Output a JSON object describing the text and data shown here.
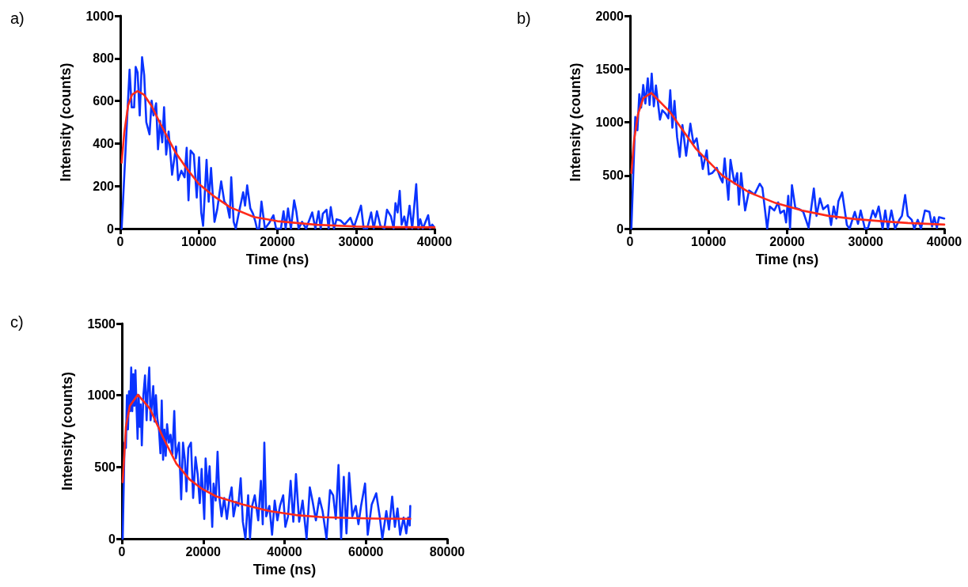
{
  "chart_data": [
    {
      "type": "line",
      "title": "a)",
      "xlabel": "Time (ns)",
      "ylabel": "Intensity (counts)",
      "xlim": [
        0,
        40000
      ],
      "xticks": [
        0,
        10000,
        20000,
        30000,
        40000
      ],
      "ylim": [
        0,
        1000
      ],
      "yticks": [
        0,
        200,
        400,
        600,
        800,
        1000
      ],
      "grid": false,
      "marker": "none",
      "series": [
        {
          "color": "#0a33ff",
          "x": [
            170,
            1180,
            1450,
            1760,
            1960,
            2200,
            2470,
            2770,
            3040,
            3310,
            3720,
            3990,
            4220,
            4560,
            4800,
            5070,
            5340,
            5570,
            5840,
            6150,
            6590,
            7090,
            7360,
            7770,
            8180,
            8450,
            8680,
            8950,
            9360,
            9730,
            10030,
            10300,
            10540,
            10980,
            11250,
            11550,
            11990,
            12330,
            12840,
            13240,
            13610,
            13920,
            14120,
            14430,
            14700,
            15030,
            15640,
            15880,
            16150,
            16550,
            16890,
            17160,
            17400,
            17670,
            17970,
            18410,
            18920,
            19490,
            19830,
            20440,
            20780,
            21050,
            21350,
            21720,
            22130,
            22400,
            22700,
            23140,
            23650,
            24430,
            24830,
            25240,
            25510,
            25780,
            26250,
            26520,
            26790,
            27200,
            27530,
            28040,
            28550,
            29290,
            29730,
            30640,
            30980,
            31420,
            31930,
            32260,
            32670,
            33110,
            33610,
            33950,
            34460,
            34800,
            35030,
            35300,
            35570,
            35810,
            36150,
            36420,
            36820,
            37160,
            37670,
            37940,
            38180,
            38510,
            39190,
            39430,
            39700,
            39970
          ],
          "values": [
            0,
            747,
            570,
            570,
            760,
            734,
            532,
            806,
            722,
            500,
            443,
            601,
            532,
            589,
            373,
            506,
            405,
            570,
            348,
            456,
            253,
            386,
            228,
            272,
            241,
            380,
            133,
            367,
            348,
            146,
            335,
            76,
            13,
            323,
            127,
            285,
            32,
            89,
            222,
            127,
            108,
            51,
            241,
            32,
            0,
            63,
            171,
            108,
            203,
            95,
            70,
            38,
            0,
            0,
            127,
            0,
            25,
            63,
            0,
            0,
            82,
            0,
            95,
            0,
            133,
            82,
            0,
            32,
            0,
            76,
            0,
            82,
            0,
            70,
            89,
            0,
            101,
            0,
            44,
            38,
            19,
            51,
            6,
            108,
            0,
            0,
            76,
            0,
            82,
            13,
            0,
            89,
            57,
            0,
            120,
            76,
            177,
            19,
            57,
            0,
            108,
            0,
            209,
            0,
            44,
            0,
            63,
            0,
            19,
            6
          ]
        },
        {
          "color": "#ff2a1a",
          "x": [
            170,
            500,
            1000,
            1500,
            2200,
            3000,
            4000,
            5000,
            6000,
            7000,
            8500,
            10000,
            12000,
            14000,
            17000,
            20000,
            25000,
            30000,
            35000,
            40000
          ],
          "values": [
            310,
            450,
            580,
            630,
            646,
            630,
            575,
            500,
            430,
            360,
            280,
            210,
            150,
            100,
            55,
            35,
            18,
            10,
            7,
            6
          ]
        }
      ]
    },
    {
      "type": "line",
      "title": "b)",
      "xlabel": "Time (ns)",
      "ylabel": "Intensity (counts)",
      "xlim": [
        0,
        40000
      ],
      "xticks": [
        0,
        10000,
        20000,
        30000,
        40000
      ],
      "ylim": [
        0,
        2000
      ],
      "yticks": [
        0,
        500,
        1000,
        1500,
        2000
      ],
      "grid": false,
      "marker": "none",
      "series": [
        {
          "color": "#0a33ff",
          "x": [
            170,
            670,
            940,
            1180,
            1410,
            1680,
            1950,
            2260,
            2490,
            2760,
            3030,
            3300,
            3810,
            4110,
            4550,
            4880,
            5120,
            5390,
            5660,
            5990,
            6330,
            6670,
            7140,
            7680,
            8080,
            8480,
            8820,
            9020,
            9260,
            9760,
            10030,
            10440,
            11040,
            11450,
            11780,
            12050,
            12520,
            12790,
            13300,
            13640,
            13870,
            14140,
            14650,
            15150,
            15840,
            16510,
            16850,
            17460,
            17790,
            18370,
            18860,
            19130,
            19600,
            19870,
            20140,
            20370,
            20610,
            21040,
            21550,
            22050,
            22730,
            23400,
            23740,
            24180,
            24580,
            25190,
            25590,
            25930,
            26260,
            26530,
            27000,
            27610,
            27950,
            28620,
            29020,
            29360,
            29900,
            30300,
            30910,
            31250,
            31650,
            32150,
            32490,
            32830,
            33270,
            33740,
            34280,
            34610,
            35020,
            35350,
            35860,
            36190,
            36630,
            37040,
            37540,
            38110,
            38450,
            38720,
            39060,
            39330,
            40000
          ],
          "values": [
            0,
            1049,
            924,
            1263,
            1137,
            1350,
            1175,
            1413,
            1162,
            1456,
            1150,
            1345,
            1024,
            1112,
            1079,
            1037,
            1300,
            949,
            1200,
            861,
            673,
            974,
            685,
            986,
            798,
            848,
            685,
            698,
            560,
            735,
            510,
            522,
            572,
            484,
            434,
            660,
            271,
            647,
            422,
            522,
            226,
            522,
            171,
            359,
            321,
            422,
            384,
            0,
            208,
            171,
            246,
            146,
            171,
            58,
            309,
            0,
            409,
            196,
            183,
            158,
            8,
            377,
            120,
            284,
            183,
            221,
            33,
            208,
            95,
            259,
            341,
            33,
            0,
            158,
            45,
            171,
            0,
            8,
            171,
            108,
            208,
            0,
            171,
            0,
            171,
            0,
            83,
            120,
            316,
            120,
            83,
            0,
            83,
            0,
            171,
            158,
            20,
            108,
            8,
            108,
            95
          ]
        },
        {
          "color": "#ff2a1a",
          "x": [
            170,
            500,
            1010,
            1680,
            2700,
            5050,
            8420,
            11780,
            15150,
            18520,
            21890,
            25260,
            28620,
            31990,
            35360,
            40000
          ],
          "values": [
            522,
            823,
            1074,
            1225,
            1275,
            1099,
            748,
            497,
            341,
            241,
            171,
            120,
            90,
            70,
            53,
            38
          ]
        }
      ]
    },
    {
      "type": "line",
      "title": "c)",
      "xlabel": "Time (ns)",
      "ylabel": "Intensity (counts)",
      "xlim": [
        0,
        80000
      ],
      "xticks": [
        0,
        20000,
        40000,
        60000,
        80000
      ],
      "ylim": [
        0,
        1500
      ],
      "yticks": [
        0,
        500,
        1000,
        1500
      ],
      "grid": false,
      "marker": "none",
      "series": [
        {
          "color": "#0a33ff",
          "x": [
            200,
            650,
            980,
            1240,
            1500,
            1760,
            2030,
            2290,
            2550,
            2810,
            3070,
            3330,
            3590,
            3860,
            4120,
            4380,
            4640,
            4900,
            5290,
            5690,
            6080,
            6340,
            6730,
            7060,
            7390,
            7710,
            8040,
            8370,
            8690,
            9150,
            9480,
            9800,
            10130,
            10460,
            10780,
            11110,
            11570,
            11960,
            12420,
            12880,
            13270,
            13730,
            14050,
            14580,
            15030,
            15490,
            15880,
            16340,
            16990,
            17520,
            18110,
            18630,
            19150,
            19610,
            20260,
            20590,
            21110,
            21570,
            22220,
            22550,
            23070,
            23530,
            23990,
            24510,
            25160,
            25820,
            26470,
            26990,
            27450,
            28100,
            28630,
            29220,
            29740,
            30390,
            31050,
            31500,
            32030,
            32680,
            33530,
            34180,
            34640,
            35030,
            35490,
            36270,
            36930,
            37580,
            38240,
            38890,
            39670,
            40200,
            40850,
            41500,
            42160,
            42810,
            43590,
            44440,
            45420,
            46210,
            46860,
            47710,
            48560,
            49350,
            50330,
            51180,
            51960,
            52610,
            53270,
            53920,
            54570,
            55230,
            55880,
            56670,
            57520,
            58170,
            58820,
            59800,
            60460,
            61440,
            62550,
            63400,
            64050,
            65030,
            65690,
            66470,
            67130,
            67780,
            68430,
            69280,
            69940,
            70400,
            70790,
            70920
          ],
          "values": [
            0,
            670,
            633,
            1000,
            762,
            1028,
            890,
            1193,
            890,
            1147,
            927,
            1174,
            927,
            697,
            1000,
            780,
            936,
            651,
            1000,
            1138,
            826,
            1018,
            1193,
            826,
            945,
            1064,
            817,
            1000,
            844,
            752,
            596,
            963,
            550,
            761,
            578,
            798,
            670,
            725,
            587,
            890,
            560,
            633,
            670,
            275,
            670,
            550,
            330,
            633,
            670,
            284,
            569,
            450,
            248,
            486,
            138,
            560,
            339,
            505,
            83,
            385,
            266,
            606,
            284,
            156,
            284,
            138,
            284,
            358,
            156,
            257,
            229,
            422,
            119,
            0,
            303,
            0,
            229,
            303,
            128,
            404,
            101,
            670,
            156,
            229,
            28,
            266,
            128,
            229,
            303,
            83,
            156,
            404,
            119,
            450,
            119,
            266,
            0,
            358,
            266,
            128,
            284,
            193,
            0,
            339,
            303,
            138,
            514,
            0,
            431,
            37,
            459,
            156,
            229,
            101,
            229,
            385,
            28,
            239,
            317,
            156,
            0,
            193,
            64,
            294,
            83,
            211,
            28,
            147,
            37,
            147,
            92,
            229
          ]
        },
        {
          "color": "#ff2a1a",
          "x": [
            200,
            980,
            1960,
            3920,
            6860,
            10130,
            13400,
            16670,
            19610,
            23200,
            29740,
            36270,
            42810,
            49350,
            55880,
            62420,
            70920
          ],
          "values": [
            395,
            780,
            927,
            1004,
            908,
            706,
            523,
            413,
            350,
            295,
            239,
            193,
            165,
            150,
            145,
            141,
            139
          ]
        }
      ]
    }
  ]
}
